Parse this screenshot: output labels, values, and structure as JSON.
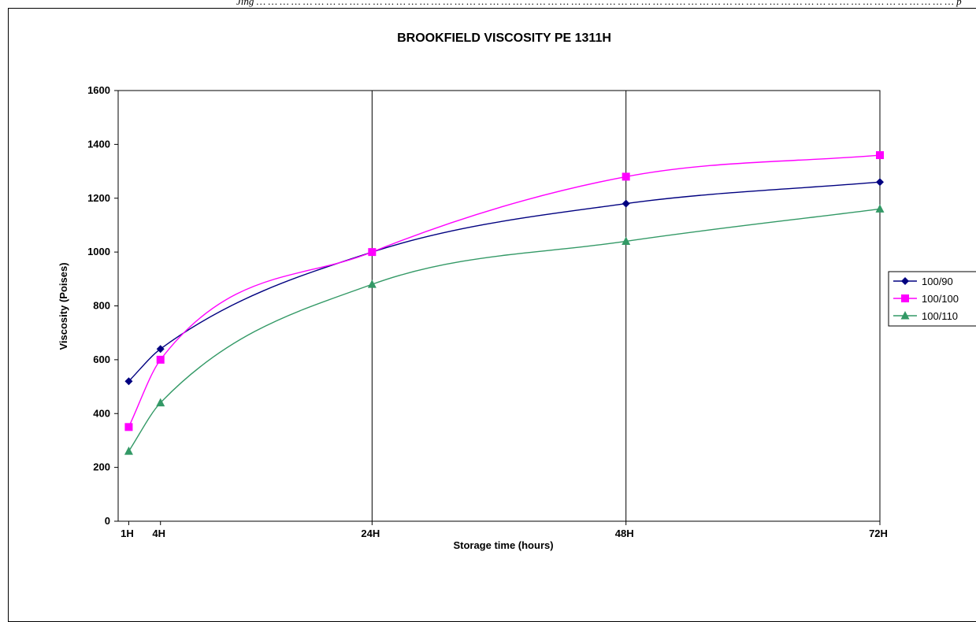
{
  "page": {
    "top_caption": "Jing … … … … … … … … … … … … … … … … … … … … … … … … … … … … … … … … … … … … … … … … … … … … … … … … … … … … … … … … … … … … p"
  },
  "chart_data": {
    "type": "line",
    "title": "BROOKFIELD VISCOSITY PE 1311H",
    "xlabel": "Storage time (hours)",
    "ylabel": "Viscosity (Poises)",
    "ylim": [
      0,
      1600
    ],
    "yticks": [
      0,
      200,
      400,
      600,
      800,
      1000,
      1200,
      1400,
      1600
    ],
    "xlim": [
      0,
      72
    ],
    "xticks": [
      {
        "value": 1,
        "label": "1H"
      },
      {
        "value": 4,
        "label": "4H"
      },
      {
        "value": 24,
        "label": "24H"
      },
      {
        "value": 48,
        "label": "48H"
      },
      {
        "value": 72,
        "label": "72H"
      }
    ],
    "vertical_gridlines_at": [
      24,
      48
    ],
    "horizontal_grid": false,
    "legend_position": "right",
    "series": [
      {
        "name": "100/90",
        "color": "#000080",
        "marker": "diamond",
        "x": [
          1,
          4,
          24,
          48,
          72
        ],
        "y": [
          520,
          640,
          1000,
          1180,
          1260
        ]
      },
      {
        "name": "100/100",
        "color": "#FF00FF",
        "marker": "square",
        "x": [
          1,
          4,
          24,
          48,
          72
        ],
        "y": [
          350,
          600,
          1000,
          1280,
          1360
        ]
      },
      {
        "name": "100/110",
        "color": "#339966",
        "marker": "triangle",
        "x": [
          1,
          4,
          24,
          48,
          72
        ],
        "y": [
          260,
          440,
          880,
          1040,
          1160
        ]
      }
    ]
  }
}
